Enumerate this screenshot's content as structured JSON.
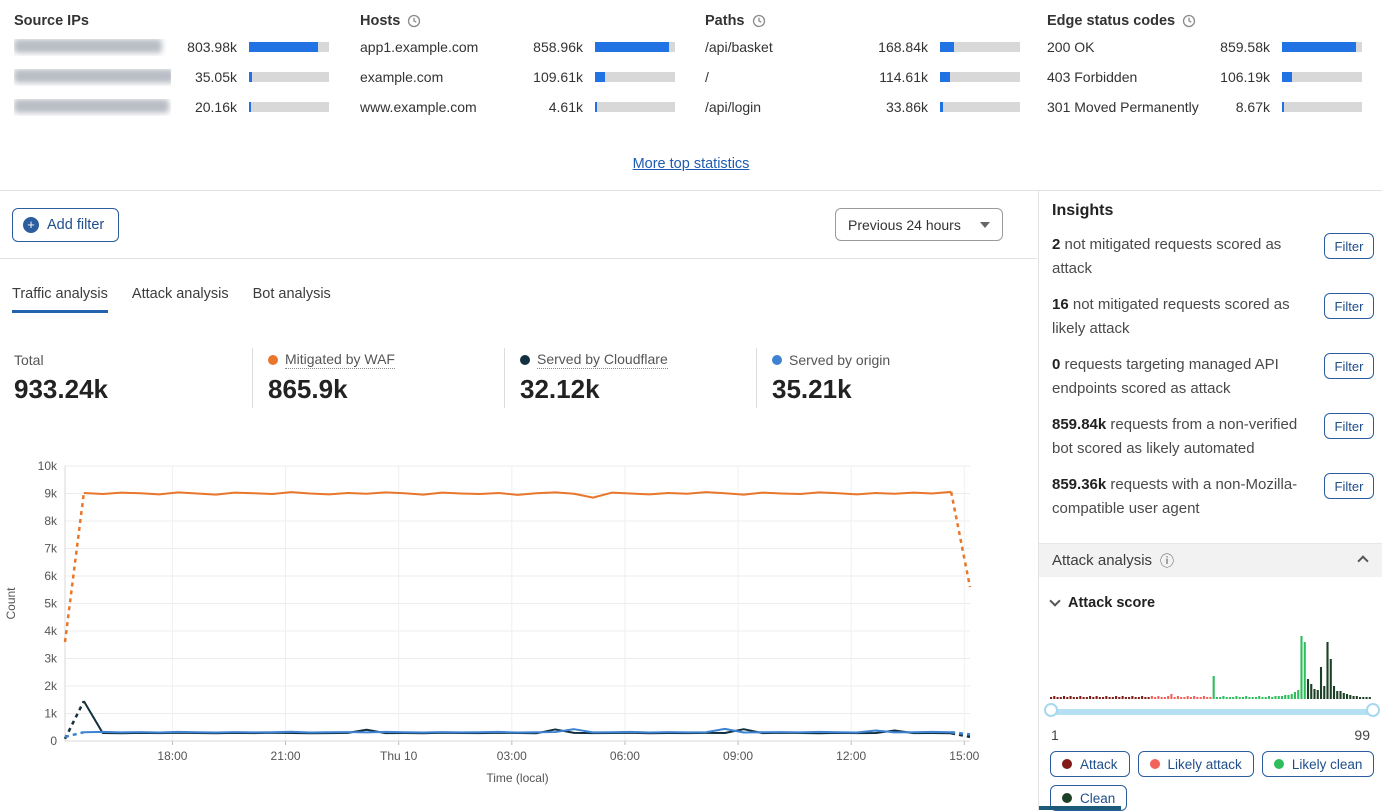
{
  "top_stats": {
    "more_link": "More top statistics",
    "panels": [
      {
        "title": "Source IPs",
        "has_clock": false,
        "items": [
          {
            "label": "",
            "redacted": true,
            "value": "803.98k",
            "pct": 86
          },
          {
            "label": "",
            "redacted": true,
            "value": "35.05k",
            "pct": 4
          },
          {
            "label": "",
            "redacted": true,
            "value": "20.16k",
            "pct": 2
          }
        ]
      },
      {
        "title": "Hosts",
        "has_clock": true,
        "items": [
          {
            "label": "app1.example.com",
            "value": "858.96k",
            "pct": 92
          },
          {
            "label": "example.com",
            "value": "109.61k",
            "pct": 12
          },
          {
            "label": "www.example.com",
            "value": "4.61k",
            "pct": 2
          }
        ]
      },
      {
        "title": "Paths",
        "has_clock": true,
        "items": [
          {
            "label": "/api/basket",
            "value": "168.84k",
            "pct": 18
          },
          {
            "label": "/",
            "value": "114.61k",
            "pct": 12
          },
          {
            "label": "/api/login",
            "value": "33.86k",
            "pct": 4
          }
        ]
      },
      {
        "title": "Edge status codes",
        "has_clock": true,
        "items": [
          {
            "label": "200 OK",
            "value": "859.58k",
            "pct": 92
          },
          {
            "label": "403 Forbidden",
            "value": "106.19k",
            "pct": 12
          },
          {
            "label": "301 Moved Permanently",
            "value": "8.67k",
            "pct": 2
          }
        ]
      }
    ]
  },
  "toolbar": {
    "add_filter_label": "Add filter",
    "time_range": "Previous 24 hours"
  },
  "tabs": [
    {
      "label": "Traffic analysis",
      "active": true
    },
    {
      "label": "Attack analysis",
      "active": false
    },
    {
      "label": "Bot analysis",
      "active": false
    }
  ],
  "stats": [
    {
      "label": "Total",
      "value": "933.24k",
      "dot": "",
      "dotted": false
    },
    {
      "label": "Mitigated by WAF",
      "value": "865.9k",
      "dot": "#e8762b",
      "dotted": true
    },
    {
      "label": "Served by Cloudflare",
      "value": "32.12k",
      "dot": "#12303f",
      "dotted": true
    },
    {
      "label": "Served by origin",
      "value": "35.21k",
      "dot": "#3e82d2",
      "dotted": false
    }
  ],
  "chart_data": [
    {
      "type": "line",
      "title": "Traffic analysis over previous 24 hours",
      "xlabel": "Time (local)",
      "ylabel": "Count",
      "ylim": [
        0,
        10000
      ],
      "y_ticks": [
        "0",
        "1k",
        "2k",
        "3k",
        "4k",
        "5k",
        "6k",
        "7k",
        "8k",
        "9k",
        "10k"
      ],
      "x_ticks": [
        "18:00",
        "21:00",
        "Thu 10",
        "03:00",
        "06:00",
        "09:00",
        "12:00",
        "15:00"
      ],
      "x_tick_start_frac": 0.1187,
      "x_tick_step_frac": 0.125,
      "grid": true,
      "dashed_ends": true,
      "series": [
        {
          "name": "Mitigated by WAF",
          "color": "#e8762b",
          "values": [
            3600,
            9020,
            8980,
            9030,
            9010,
            8970,
            9040,
            9000,
            8960,
            9030,
            9010,
            8980,
            9050,
            9000,
            8970,
            9020,
            8990,
            9040,
            9010,
            8960,
            9030,
            9000,
            8980,
            9020,
            8950,
            9010,
            9040,
            8990,
            8850,
            9030,
            9000,
            8970,
            9020,
            8990,
            9050,
            9010,
            8960,
            9030,
            9000,
            8980,
            9040,
            9010,
            8970,
            9020,
            8990,
            9030,
            9000,
            9060,
            5600
          ]
        },
        {
          "name": "Served by Cloudflare",
          "color": "#12303f",
          "values": [
            80,
            1450,
            290,
            280,
            295,
            285,
            300,
            290,
            280,
            295,
            285,
            300,
            290,
            280,
            285,
            295,
            410,
            285,
            290,
            280,
            300,
            290,
            285,
            300,
            290,
            280,
            420,
            295,
            285,
            290,
            300,
            280,
            290,
            285,
            295,
            290,
            430,
            285,
            300,
            290,
            280,
            295,
            285,
            290,
            380,
            285,
            290,
            280,
            150
          ]
        },
        {
          "name": "Served by origin",
          "color": "#3e82d2",
          "values": [
            150,
            320,
            330,
            315,
            325,
            310,
            330,
            320,
            310,
            325,
            315,
            320,
            335,
            310,
            320,
            325,
            315,
            330,
            320,
            310,
            325,
            315,
            320,
            330,
            310,
            320,
            325,
            430,
            315,
            320,
            330,
            310,
            325,
            315,
            320,
            440,
            310,
            320,
            325,
            315,
            330,
            320,
            310,
            380,
            315,
            320,
            330,
            320,
            240
          ]
        }
      ]
    },
    {
      "type": "bar",
      "title": "Attack score distribution",
      "x_range": [
        1,
        99
      ],
      "values": [
        2,
        3,
        2,
        2,
        3,
        2,
        3,
        2,
        2,
        3,
        2,
        2,
        3,
        2,
        3,
        2,
        2,
        3,
        2,
        2,
        3,
        2,
        3,
        2,
        2,
        3,
        2,
        2,
        3,
        2,
        2,
        3,
        2,
        3,
        2,
        2,
        3,
        5,
        2,
        3,
        2,
        2,
        3,
        2,
        3,
        2,
        2,
        3,
        2,
        2,
        23,
        2,
        2,
        3,
        2,
        2,
        2,
        3,
        2,
        2,
        3,
        2,
        2,
        2,
        3,
        2,
        2,
        3,
        2,
        3,
        3,
        3,
        4,
        4,
        5,
        7,
        9,
        63,
        57,
        20,
        15,
        10,
        9,
        32,
        13,
        57,
        40,
        13,
        8,
        8,
        6,
        5,
        4,
        3,
        3,
        2,
        2,
        2,
        2
      ],
      "categories_by_score": [
        {
          "max": 31,
          "name": "Attack",
          "color": "#811b15"
        },
        {
          "max": 50,
          "name": "Likely attack",
          "color": "#f2625b"
        },
        {
          "max": 79,
          "name": "Likely clean",
          "color": "#2fbd5d"
        },
        {
          "max": 99,
          "name": "Clean",
          "color": "#1c4026"
        }
      ]
    }
  ],
  "insights": {
    "title": "Insights",
    "filter_label": "Filter",
    "items": [
      {
        "count": "2",
        "text": "not mitigated requests scored as attack"
      },
      {
        "count": "16",
        "text": "not mitigated requests scored as likely attack"
      },
      {
        "count": "0",
        "text": "requests targeting managed API endpoints scored as attack"
      },
      {
        "count": "859.84k",
        "text": "requests from a non-verified bot scored as likely automated"
      },
      {
        "count": "859.36k",
        "text": "requests with a non-Mozilla-compatible user agent"
      }
    ]
  },
  "attack_panel": {
    "title": "Attack analysis",
    "subsection": "Attack score",
    "slider": {
      "min": "1",
      "max": "99"
    },
    "legend": [
      {
        "label": "Attack",
        "color": "#811b15"
      },
      {
        "label": "Likely attack",
        "color": "#f2625b"
      },
      {
        "label": "Likely clean",
        "color": "#2fbd5d"
      },
      {
        "label": "Clean",
        "color": "#1c4026"
      }
    ]
  }
}
